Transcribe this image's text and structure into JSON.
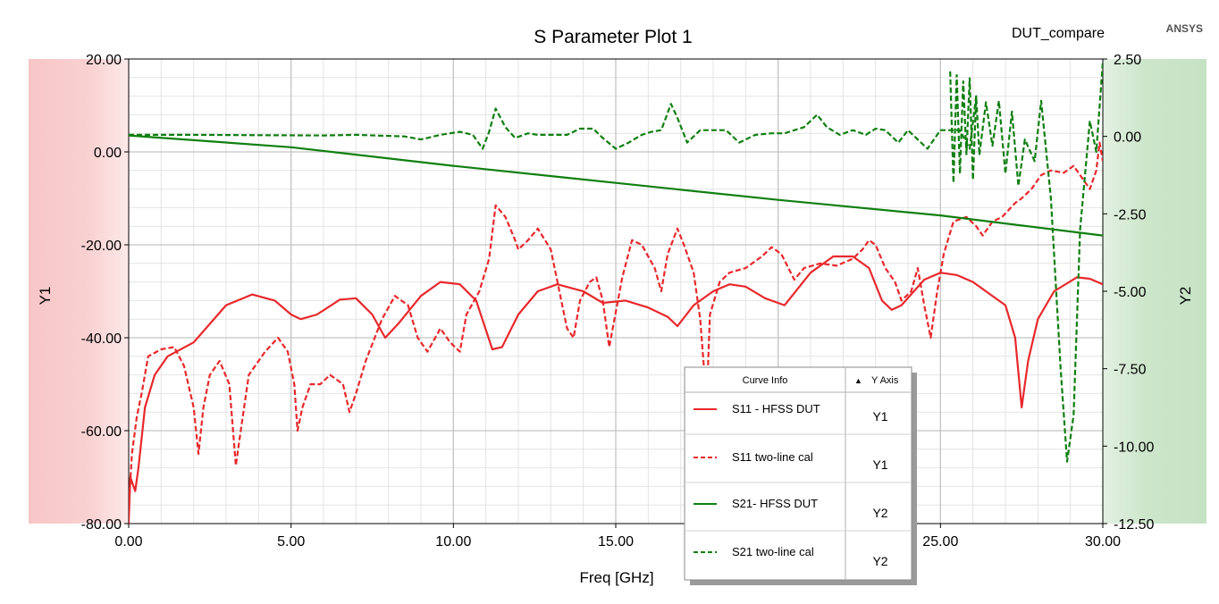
{
  "app": {
    "title": "S Parameter Plot 1",
    "project": "DUT_compare",
    "brand": "ANSYS"
  },
  "legend": {
    "header_curve": "Curve Info",
    "header_axis": "Y Axis",
    "sort_marker": "▲"
  },
  "colors": {
    "s11": "#e8282b",
    "s21": "#0f7f0f",
    "y1_band": "#f8caca",
    "y2_band": "#c9e4c7",
    "grid_major": "#c3c3c3",
    "grid_minor": "#e4e4e4"
  },
  "chart_data": {
    "type": "line",
    "title": "S Parameter Plot 1",
    "xlabel": "Freq [GHz]",
    "ylabel_left": "Y1",
    "ylabel_right": "Y2",
    "xlim": [
      0,
      30
    ],
    "y1lim": [
      -80,
      20
    ],
    "y2lim": [
      -12.5,
      2.5
    ],
    "x_ticks": [
      "0.00",
      "5.00",
      "10.00",
      "15.00",
      "20.00",
      "25.00",
      "30.00"
    ],
    "y1_ticks": [
      "20.00",
      "0.00",
      "-20.00",
      "-40.00",
      "-60.00",
      "-80.00"
    ],
    "y2_ticks": [
      "2.50",
      "0.00",
      "-2.50",
      "-5.00",
      "-7.50",
      "-10.00",
      "-12.50"
    ],
    "grid": true,
    "legend_position": "bottom-right",
    "series": [
      {
        "name": "S11 - HFSS DUT",
        "axis": "Y1",
        "style": "solid",
        "color": "#e8282b",
        "points": [
          [
            0,
            -80
          ],
          [
            0.05,
            -70
          ],
          [
            0.2,
            -73
          ],
          [
            0.3,
            -68
          ],
          [
            0.5,
            -55
          ],
          [
            0.8,
            -48
          ],
          [
            1.2,
            -44
          ],
          [
            2,
            -41
          ],
          [
            3,
            -33
          ],
          [
            3.8,
            -30.7
          ],
          [
            4.5,
            -32
          ],
          [
            5,
            -35
          ],
          [
            5.3,
            -36
          ],
          [
            5.8,
            -35
          ],
          [
            6.5,
            -31.8
          ],
          [
            7,
            -31.5
          ],
          [
            7.5,
            -35
          ],
          [
            7.9,
            -40
          ],
          [
            8.3,
            -37
          ],
          [
            9,
            -31
          ],
          [
            9.6,
            -28
          ],
          [
            10.2,
            -28.5
          ],
          [
            10.7,
            -32
          ],
          [
            11.2,
            -42.5
          ],
          [
            11.5,
            -42
          ],
          [
            12,
            -35
          ],
          [
            12.6,
            -30
          ],
          [
            13.2,
            -28.5
          ],
          [
            14,
            -30
          ],
          [
            14.6,
            -32.5
          ],
          [
            15.3,
            -32
          ],
          [
            16,
            -33.5
          ],
          [
            16.6,
            -35.5
          ],
          [
            16.9,
            -37.5
          ],
          [
            17.4,
            -33
          ],
          [
            18,
            -30
          ],
          [
            18.5,
            -28.5
          ],
          [
            19,
            -29
          ],
          [
            19.6,
            -31.5
          ],
          [
            20.2,
            -33
          ],
          [
            21,
            -26
          ],
          [
            21.7,
            -22.5
          ],
          [
            22.3,
            -22.5
          ],
          [
            22.8,
            -25
          ],
          [
            23.2,
            -32
          ],
          [
            23.5,
            -34
          ],
          [
            23.8,
            -33
          ],
          [
            24.5,
            -27.5
          ],
          [
            25,
            -26
          ],
          [
            25.5,
            -26.5
          ],
          [
            26,
            -28
          ],
          [
            26.5,
            -30.5
          ],
          [
            27,
            -33
          ],
          [
            27.3,
            -40
          ],
          [
            27.5,
            -55
          ],
          [
            27.7,
            -45
          ],
          [
            28,
            -36
          ],
          [
            28.5,
            -30
          ],
          [
            29.2,
            -27
          ],
          [
            29.6,
            -27.3
          ],
          [
            30,
            -28.5
          ]
        ]
      },
      {
        "name": "S11 two-line cal",
        "axis": "Y1",
        "style": "dashed",
        "color": "#e8282b",
        "points": [
          [
            0,
            -77
          ],
          [
            0.1,
            -65
          ],
          [
            0.25,
            -57
          ],
          [
            0.4,
            -52
          ],
          [
            0.6,
            -44
          ],
          [
            1,
            -42.5
          ],
          [
            1.4,
            -42
          ],
          [
            1.7,
            -46
          ],
          [
            2,
            -55
          ],
          [
            2.15,
            -65
          ],
          [
            2.3,
            -55
          ],
          [
            2.5,
            -48
          ],
          [
            2.8,
            -45
          ],
          [
            3.1,
            -50
          ],
          [
            3.3,
            -67.5
          ],
          [
            3.45,
            -60
          ],
          [
            3.7,
            -48
          ],
          [
            4.2,
            -43
          ],
          [
            4.6,
            -40
          ],
          [
            4.9,
            -43
          ],
          [
            5.1,
            -50
          ],
          [
            5.2,
            -60
          ],
          [
            5.35,
            -55
          ],
          [
            5.6,
            -50
          ],
          [
            5.9,
            -50
          ],
          [
            6.2,
            -48
          ],
          [
            6.6,
            -50
          ],
          [
            6.8,
            -56
          ],
          [
            7,
            -52
          ],
          [
            7.3,
            -45
          ],
          [
            7.8,
            -36
          ],
          [
            8.2,
            -31
          ],
          [
            8.6,
            -33
          ],
          [
            8.9,
            -40
          ],
          [
            9.2,
            -43
          ],
          [
            9.6,
            -38
          ],
          [
            9.9,
            -41
          ],
          [
            10.2,
            -43
          ],
          [
            10.4,
            -35
          ],
          [
            10.8,
            -30
          ],
          [
            11.1,
            -23
          ],
          [
            11.3,
            -11.5
          ],
          [
            11.6,
            -14
          ],
          [
            11.9,
            -19
          ],
          [
            12,
            -21
          ],
          [
            12.3,
            -19
          ],
          [
            12.6,
            -16.5
          ],
          [
            13,
            -21
          ],
          [
            13.5,
            -38
          ],
          [
            13.7,
            -40
          ],
          [
            13.9,
            -32
          ],
          [
            14.2,
            -28
          ],
          [
            14.4,
            -27
          ],
          [
            14.6,
            -32
          ],
          [
            14.8,
            -42
          ],
          [
            15.2,
            -27
          ],
          [
            15.5,
            -19
          ],
          [
            15.8,
            -20
          ],
          [
            16.2,
            -25
          ],
          [
            16.4,
            -30
          ],
          [
            16.6,
            -22
          ],
          [
            16.9,
            -16.5
          ],
          [
            17.1,
            -20
          ],
          [
            17.4,
            -26
          ],
          [
            17.6,
            -36
          ],
          [
            17.8,
            -54
          ],
          [
            17.9,
            -35
          ],
          [
            18.2,
            -28
          ],
          [
            18.5,
            -26
          ],
          [
            19,
            -25
          ],
          [
            19.5,
            -22.5
          ],
          [
            19.8,
            -20.5
          ],
          [
            20.1,
            -22
          ],
          [
            20.5,
            -27.5
          ],
          [
            20.8,
            -25
          ],
          [
            21.3,
            -24
          ],
          [
            21.8,
            -24.5
          ],
          [
            22.3,
            -23
          ],
          [
            22.6,
            -21
          ],
          [
            22.8,
            -19
          ],
          [
            23,
            -20
          ],
          [
            23.3,
            -25
          ],
          [
            23.6,
            -28
          ],
          [
            23.8,
            -32
          ],
          [
            24.1,
            -30
          ],
          [
            24.3,
            -25
          ],
          [
            24.5,
            -33
          ],
          [
            24.7,
            -40
          ],
          [
            24.9,
            -30
          ],
          [
            25.1,
            -22
          ],
          [
            25.4,
            -15
          ],
          [
            25.8,
            -14
          ],
          [
            26.1,
            -16
          ],
          [
            26.3,
            -18
          ],
          [
            26.6,
            -15
          ],
          [
            26.9,
            -14
          ],
          [
            27.1,
            -12.5
          ],
          [
            27.3,
            -11
          ],
          [
            27.5,
            -10
          ],
          [
            27.8,
            -8
          ],
          [
            28.1,
            -5
          ],
          [
            28.4,
            -4
          ],
          [
            28.8,
            -4.5
          ],
          [
            29.1,
            -3
          ],
          [
            29.4,
            -6
          ],
          [
            29.6,
            -8
          ],
          [
            29.8,
            -4
          ],
          [
            29.9,
            2
          ],
          [
            30,
            -2
          ]
        ]
      },
      {
        "name": "S21- HFSS DUT",
        "axis": "Y2",
        "style": "solid",
        "color": "#0f7f0f",
        "points": [
          [
            0,
            0.03
          ],
          [
            5,
            -0.35
          ],
          [
            10,
            -0.95
          ],
          [
            15,
            -1.5
          ],
          [
            20,
            -2.05
          ],
          [
            25,
            -2.55
          ],
          [
            30,
            -3.2
          ]
        ]
      },
      {
        "name": "S21 two-line cal",
        "axis": "Y2",
        "style": "dashed",
        "color": "#0f7f0f",
        "points": [
          [
            0,
            0.05
          ],
          [
            2,
            0.05
          ],
          [
            4,
            0.04
          ],
          [
            6,
            0.03
          ],
          [
            7,
            0.05
          ],
          [
            8.5,
            0
          ],
          [
            9,
            -0.1
          ],
          [
            9.6,
            0.05
          ],
          [
            10.2,
            0.15
          ],
          [
            10.6,
            0.05
          ],
          [
            10.9,
            -0.4
          ],
          [
            11.1,
            0.15
          ],
          [
            11.3,
            0.9
          ],
          [
            11.6,
            0.3
          ],
          [
            11.9,
            -0.05
          ],
          [
            12.3,
            0.1
          ],
          [
            12.6,
            0.05
          ],
          [
            13.1,
            0.05
          ],
          [
            13.5,
            0.05
          ],
          [
            13.9,
            0.25
          ],
          [
            14.3,
            0.25
          ],
          [
            14.6,
            -0.05
          ],
          [
            15,
            -0.4
          ],
          [
            15.4,
            -0.2
          ],
          [
            15.8,
            0.05
          ],
          [
            16.1,
            0.15
          ],
          [
            16.4,
            0.2
          ],
          [
            16.7,
            1.05
          ],
          [
            16.9,
            0.6
          ],
          [
            17.2,
            -0.2
          ],
          [
            17.6,
            0.2
          ],
          [
            18,
            0.2
          ],
          [
            18.4,
            0.2
          ],
          [
            18.8,
            -0.2
          ],
          [
            19.3,
            0.05
          ],
          [
            19.8,
            0.1
          ],
          [
            20.2,
            0.1
          ],
          [
            20.5,
            0.2
          ],
          [
            20.8,
            0.3
          ],
          [
            21.2,
            0.7
          ],
          [
            21.5,
            0.3
          ],
          [
            21.9,
            0.05
          ],
          [
            22.3,
            0.2
          ],
          [
            22.7,
            0.05
          ],
          [
            23,
            0.25
          ],
          [
            23.3,
            0.2
          ],
          [
            23.7,
            -0.2
          ],
          [
            24,
            0.2
          ],
          [
            24.3,
            -0.1
          ],
          [
            24.6,
            -0.4
          ],
          [
            25,
            0.2
          ],
          [
            25.3,
            0.2
          ],
          [
            25.6,
            0.2
          ],
          [
            25.9,
            -0.4
          ],
          [
            26.1,
            1.3
          ],
          [
            26.2,
            -0.6
          ],
          [
            26.4,
            1.1
          ],
          [
            26.6,
            -0.3
          ],
          [
            26.8,
            1.15
          ],
          [
            27,
            -1.2
          ],
          [
            27.2,
            0.8
          ],
          [
            27.4,
            -1.6
          ],
          [
            27.6,
            -0.1
          ],
          [
            27.9,
            -0.8
          ],
          [
            28.1,
            1.15
          ],
          [
            28.4,
            -2
          ],
          [
            28.7,
            -7.5
          ],
          [
            28.9,
            -10.5
          ],
          [
            29.1,
            -9
          ],
          [
            29.3,
            -3
          ],
          [
            29.6,
            0.5
          ],
          [
            29.8,
            -0.5
          ],
          [
            30,
            2.4
          ]
        ]
      }
    ],
    "extra_green_spikes": [
      [
        25.3,
        2.1
      ],
      [
        25.4,
        -1.5
      ],
      [
        25.5,
        2
      ],
      [
        25.6,
        -1.2
      ],
      [
        25.7,
        1.8
      ],
      [
        25.8,
        -0.6
      ],
      [
        25.9,
        1.9
      ],
      [
        26,
        -1.4
      ],
      [
        26.1,
        1.3
      ]
    ]
  }
}
